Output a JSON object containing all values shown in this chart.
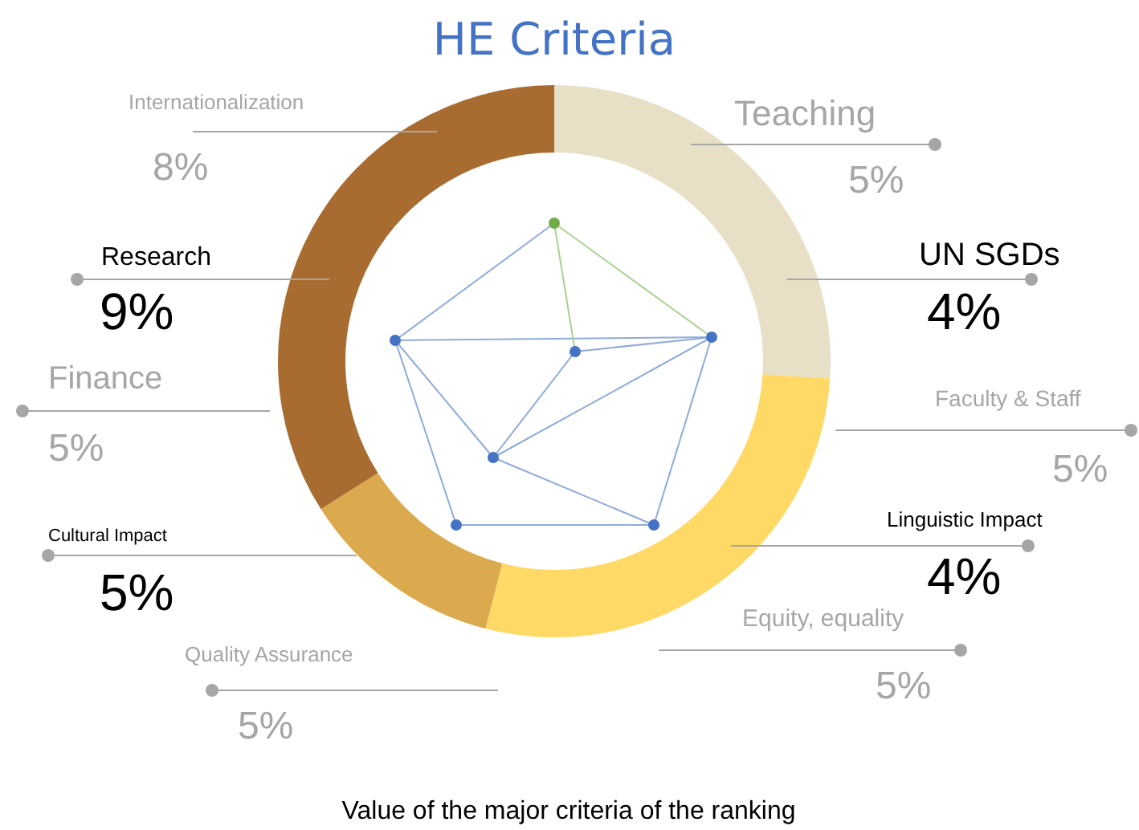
{
  "chart_data": {
    "type": "donut",
    "title": "HE Criteria",
    "categories": [
      null,
      null,
      null,
      null
    ],
    "values": [
      26,
      28,
      12,
      34
    ],
    "colors": [
      "#e8dfc7",
      "#ffd966",
      "#dcaa4e",
      "#a86c30"
    ],
    "annotations": [
      "Internationalization",
      "8%",
      "Teaching",
      "5%",
      "Research",
      "9%",
      "UN SGDs",
      "4%",
      "Finance",
      "5%",
      "Faculty & Staff",
      "5%",
      "Cultural Impact",
      "5%",
      "Linguistic Impact",
      "4%",
      "Quality Assurance",
      "5%",
      "Equity, equality",
      "5%",
      "Value of the major criteria of the ranking"
    ]
  }
}
